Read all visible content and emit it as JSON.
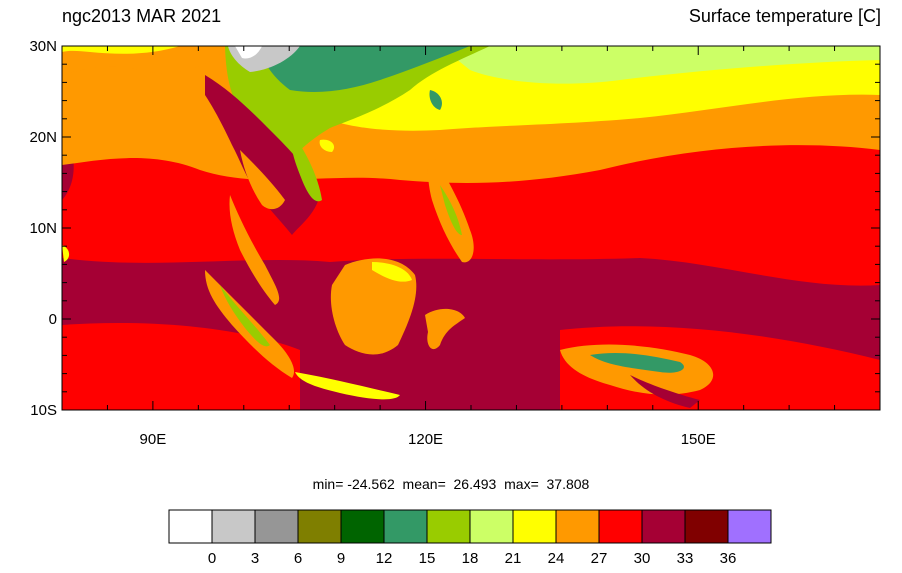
{
  "header": {
    "left_title": "ngc2013 MAR 2021",
    "right_title": "Surface temperature [C]"
  },
  "map": {
    "lat_labels": [
      "30N",
      "20N",
      "10N",
      "0",
      "10S"
    ],
    "lon_labels": [
      "90E",
      "120E",
      "150E"
    ],
    "lon_range": [
      80,
      170
    ],
    "lat_range": [
      -10,
      30
    ]
  },
  "stats": {
    "text": "min= -24.562  mean=  26.493  max=  37.808"
  },
  "colorbar": {
    "colors": [
      "#ffffff",
      "#c8c8c8",
      "#969696",
      "#7f7f00",
      "#006400",
      "#339966",
      "#99cc00",
      "#ccff66",
      "#ffff00",
      "#ff9900",
      "#ff0000",
      "#a50034",
      "#800000",
      "#a070ff"
    ],
    "labels": [
      "0",
      "3",
      "6",
      "9",
      "12",
      "15",
      "18",
      "21",
      "24",
      "27",
      "30",
      "33",
      "36"
    ]
  }
}
